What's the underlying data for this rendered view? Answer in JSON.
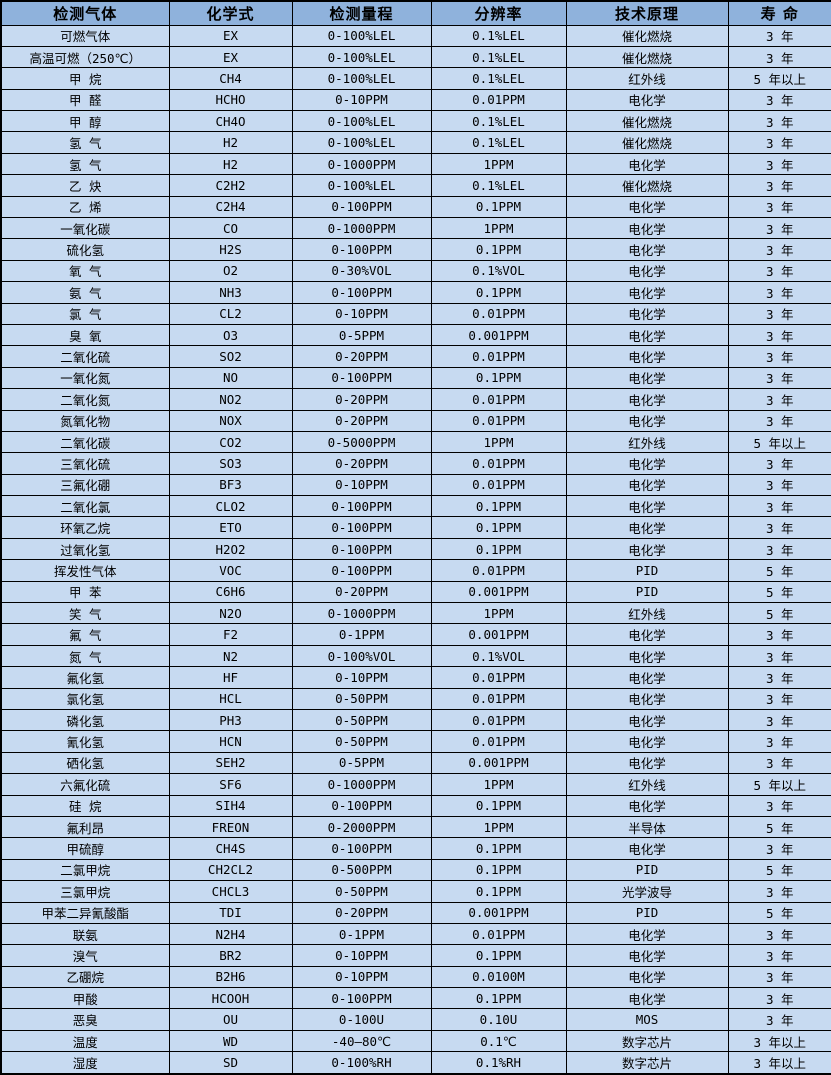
{
  "colors": {
    "header_bg": "#8FB2DC",
    "row_bg": "#C7DAF1",
    "border": "#000000",
    "text": "#000000"
  },
  "chart_data": {
    "type": "table",
    "title": "",
    "columns": [
      "检测气体",
      "化学式",
      "检测量程",
      "分辨率",
      "技术原理",
      "寿 命"
    ],
    "column_keys": [
      "gas-name",
      "chemical-formula",
      "detection-range",
      "resolution",
      "technology",
      "lifespan"
    ],
    "rows": [
      [
        "可燃气体",
        "EX",
        "0-100%LEL",
        "0.1%LEL",
        "催化燃烧",
        "3 年"
      ],
      [
        "高温可燃（250℃）",
        "EX",
        "0-100%LEL",
        "0.1%LEL",
        "催化燃烧",
        "3 年"
      ],
      [
        "甲 烷",
        "CH4",
        "0-100%LEL",
        "0.1%LEL",
        "红外线",
        "5 年以上"
      ],
      [
        "甲 醛",
        "HCHO",
        "0-10PPM",
        "0.01PPM",
        "电化学",
        "3 年"
      ],
      [
        "甲 醇",
        "CH4O",
        "0-100%LEL",
        "0.1%LEL",
        "催化燃烧",
        "3 年"
      ],
      [
        "氢 气",
        "H2",
        "0-100%LEL",
        "0.1%LEL",
        "催化燃烧",
        "3 年"
      ],
      [
        "氢 气",
        "H2",
        "0-1000PPM",
        "1PPM",
        "电化学",
        "3 年"
      ],
      [
        "乙 炔",
        "C2H2",
        "0-100%LEL",
        "0.1%LEL",
        "催化燃烧",
        "3 年"
      ],
      [
        "乙 烯",
        "C2H4",
        "0-100PPM",
        "0.1PPM",
        "电化学",
        "3 年"
      ],
      [
        "一氧化碳",
        "CO",
        "0-1000PPM",
        "1PPM",
        "电化学",
        "3 年"
      ],
      [
        "硫化氢",
        "H2S",
        "0-100PPM",
        "0.1PPM",
        "电化学",
        "3 年"
      ],
      [
        "氧 气",
        "O2",
        "0-30%VOL",
        "0.1%VOL",
        "电化学",
        "3 年"
      ],
      [
        "氨 气",
        "NH3",
        "0-100PPM",
        "0.1PPM",
        "电化学",
        "3 年"
      ],
      [
        "氯 气",
        "CL2",
        "0-10PPM",
        "0.01PPM",
        "电化学",
        "3 年"
      ],
      [
        "臭 氧",
        "O3",
        "0-5PPM",
        "0.001PPM",
        "电化学",
        "3 年"
      ],
      [
        "二氧化硫",
        "SO2",
        "0-20PPM",
        "0.01PPM",
        "电化学",
        "3 年"
      ],
      [
        "一氧化氮",
        "NO",
        "0-100PPM",
        "0.1PPM",
        "电化学",
        "3 年"
      ],
      [
        "二氧化氮",
        "NO2",
        "0-20PPM",
        "0.01PPM",
        "电化学",
        "3 年"
      ],
      [
        "氮氧化物",
        "NOX",
        "0-20PPM",
        "0.01PPM",
        "电化学",
        "3 年"
      ],
      [
        "二氧化碳",
        "CO2",
        "0-5000PPM",
        "1PPM",
        "红外线",
        "5 年以上"
      ],
      [
        "三氧化硫",
        "SO3",
        "0-20PPM",
        "0.01PPM",
        "电化学",
        "3 年"
      ],
      [
        "三氟化硼",
        "BF3",
        "0-10PPM",
        "0.01PPM",
        "电化学",
        "3 年"
      ],
      [
        "二氧化氯",
        "CLO2",
        "0-100PPM",
        "0.1PPM",
        "电化学",
        "3 年"
      ],
      [
        "环氧乙烷",
        "ETO",
        "0-100PPM",
        "0.1PPM",
        "电化学",
        "3 年"
      ],
      [
        "过氧化氢",
        "H2O2",
        "0-100PPM",
        "0.1PPM",
        "电化学",
        "3 年"
      ],
      [
        "挥发性气体",
        "VOC",
        "0-100PPM",
        "0.01PPM",
        "PID",
        "5 年"
      ],
      [
        "甲 苯",
        "C6H6",
        "0-20PPM",
        "0.001PPM",
        "PID",
        "5 年"
      ],
      [
        "笑 气",
        "N2O",
        "0-1000PPM",
        "1PPM",
        "红外线",
        "5 年"
      ],
      [
        "氟 气",
        "F2",
        "0-1PPM",
        "0.001PPM",
        "电化学",
        "3 年"
      ],
      [
        "氮 气",
        "N2",
        "0-100%VOL",
        "0.1%VOL",
        "电化学",
        "3 年"
      ],
      [
        "氟化氢",
        "HF",
        "0-10PPM",
        "0.01PPM",
        "电化学",
        "3 年"
      ],
      [
        "氯化氢",
        "HCL",
        "0-50PPM",
        "0.01PPM",
        "电化学",
        "3 年"
      ],
      [
        "磷化氢",
        "PH3",
        "0-50PPM",
        "0.01PPM",
        "电化学",
        "3 年"
      ],
      [
        "氰化氢",
        "HCN",
        "0-50PPM",
        "0.01PPM",
        "电化学",
        "3 年"
      ],
      [
        "硒化氢",
        "SEH2",
        "0-5PPM",
        "0.001PPM",
        "电化学",
        "3 年"
      ],
      [
        "六氟化硫",
        "SF6",
        "0-1000PPM",
        "1PPM",
        "红外线",
        "5 年以上"
      ],
      [
        "硅 烷",
        "SIH4",
        "0-100PPM",
        "0.1PPM",
        "电化学",
        "3 年"
      ],
      [
        "氟利昂",
        "FREON",
        "0-2000PPM",
        "1PPM",
        "半导体",
        "5 年"
      ],
      [
        "甲硫醇",
        "CH4S",
        "0-100PPM",
        "0.1PPM",
        "电化学",
        "3 年"
      ],
      [
        "二氯甲烷",
        "CH2CL2",
        "0-500PPM",
        "0.1PPM",
        "PID",
        "5 年"
      ],
      [
        "三氯甲烷",
        "CHCL3",
        "0-50PPM",
        "0.1PPM",
        "光学波导",
        "3 年"
      ],
      [
        "甲苯二异氰酸酯",
        "TDI",
        "0-20PPM",
        "0.001PPM",
        "PID",
        "5 年"
      ],
      [
        "联氨",
        "N2H4",
        "0-1PPM",
        "0.01PPM",
        "电化学",
        "3 年"
      ],
      [
        "溴气",
        "BR2",
        "0-10PPM",
        "0.1PPM",
        "电化学",
        "3 年"
      ],
      [
        "乙硼烷",
        "B2H6",
        "0-10PPM",
        "0.0100M",
        "电化学",
        "3 年"
      ],
      [
        "甲酸",
        "HCOOH",
        "0-100PPM",
        "0.1PPM",
        "电化学",
        "3 年"
      ],
      [
        "恶臭",
        "OU",
        "0-100U",
        "0.10U",
        "MOS",
        "3 年"
      ],
      [
        "温度",
        "WD",
        "-40—80℃",
        "0.1℃",
        "数字芯片",
        "3 年以上"
      ],
      [
        "湿度",
        "SD",
        "0-100%RH",
        "0.1%RH",
        "数字芯片",
        "3 年以上"
      ]
    ]
  }
}
